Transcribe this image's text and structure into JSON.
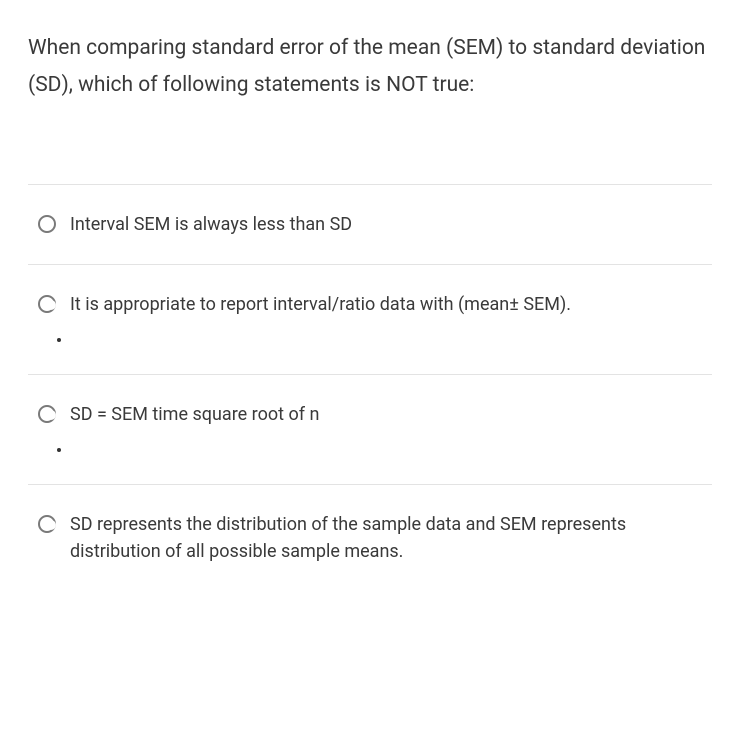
{
  "question": {
    "text": "When comparing standard error of the mean (SEM) to standard deviation (SD), which of following statements is NOT true:",
    "fontsize": 21,
    "color": "#3a3a3a"
  },
  "options": [
    {
      "label": "Interval SEM is always less than SD",
      "radio_style": "empty",
      "has_bullet": false
    },
    {
      "label": "It is appropriate to report interval/ratio data with (mean± SEM).",
      "radio_style": "partial",
      "has_bullet": true
    },
    {
      "label": "SD = SEM time square root of n",
      "radio_style": "partial",
      "has_bullet": true
    },
    {
      "label": "SD represents the distribution of the sample data and SEM represents distribution of all possible sample means.",
      "radio_style": "partial",
      "has_bullet": false
    }
  ],
  "style": {
    "divider_color": "#e3e3e3",
    "radio_border_color": "#7a7a7a",
    "option_fontsize": 18,
    "background_color": "#ffffff"
  }
}
